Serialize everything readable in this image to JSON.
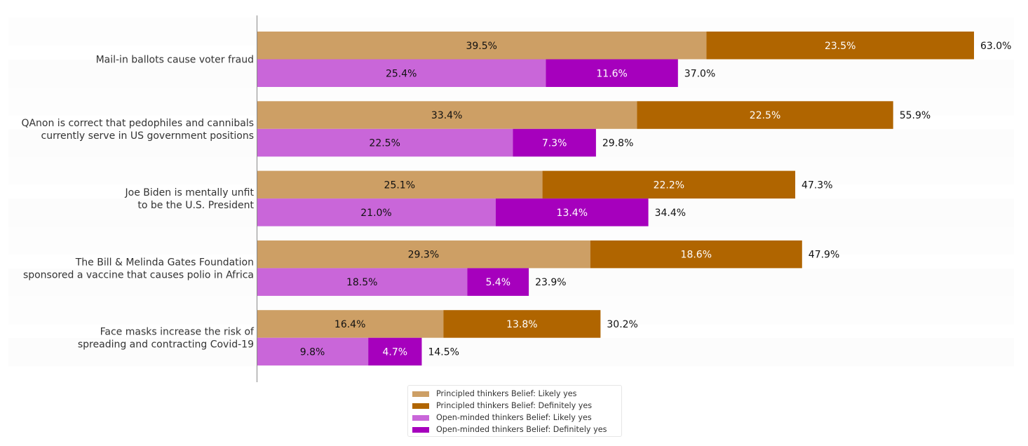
{
  "chart_data": {
    "type": "bar",
    "orientation": "horizontal",
    "stacked": true,
    "title": "",
    "xlabel": "",
    "ylabel": "",
    "xlim": [
      0,
      63.0
    ],
    "grid": false,
    "x_axis_visible": false,
    "categories": [
      [
        "Mail-in ballots cause voter fraud"
      ],
      [
        "QAnon is correct that pedophiles and cannibals ",
        "currently serve in US government positions"
      ],
      [
        "Joe Biden is mentally unfit ",
        "to be the U.S. President"
      ],
      [
        "The Bill & Melinda Gates Foundation ",
        "sponsored a vaccine that causes polio in Africa"
      ],
      [
        "Face masks increase the risk of ",
        "spreading and contracting Covid-19"
      ]
    ],
    "groups": [
      {
        "name": "Principled thinkers",
        "series": [
          {
            "name": "Principled thinkers Belief: Likely yes",
            "color": "#cd9f65",
            "label_color": "#111111",
            "values": [
              39.5,
              33.4,
              25.1,
              29.3,
              16.4
            ]
          },
          {
            "name": "Principled thinkers Belief: Definitely yes",
            "color": "#b06500",
            "label_color": "#ffffff",
            "values": [
              23.5,
              22.5,
              22.2,
              18.6,
              13.8
            ]
          }
        ],
        "totals": [
          63.0,
          55.9,
          47.3,
          47.9,
          30.2
        ]
      },
      {
        "name": "Open-minded thinkers",
        "series": [
          {
            "name": "Open-minded thinkers Belief: Likely yes",
            "color": "#c966d9",
            "label_color": "#111111",
            "values": [
              25.4,
              22.5,
              21.0,
              18.5,
              9.8
            ]
          },
          {
            "name": "Open-minded thinkers Belief: Definitely yes",
            "color": "#a600bd",
            "label_color": "#ffffff",
            "values": [
              11.6,
              7.3,
              13.4,
              5.4,
              4.7
            ]
          }
        ],
        "totals": [
          37.0,
          29.8,
          34.4,
          23.9,
          14.5
        ]
      }
    ],
    "value_suffix": "%",
    "legend": {
      "placement": "bottom-center",
      "entries": [
        "Principled thinkers Belief: Likely yes",
        "Principled thinkers Belief: Definitely yes",
        "Open-minded thinkers Belief: Likely yes",
        "Open-minded thinkers Belief: Definitely yes"
      ]
    }
  },
  "legend": {
    "items": [
      {
        "label": "Principled thinkers Belief: Likely yes",
        "color": "#cd9f65"
      },
      {
        "label": "Principled thinkers Belief: Definitely yes",
        "color": "#b06500"
      },
      {
        "label": "Open-minded thinkers Belief: Likely yes",
        "color": "#c966d9"
      },
      {
        "label": "Open-minded thinkers Belief: Definitely yes",
        "color": "#a600bd"
      }
    ]
  }
}
